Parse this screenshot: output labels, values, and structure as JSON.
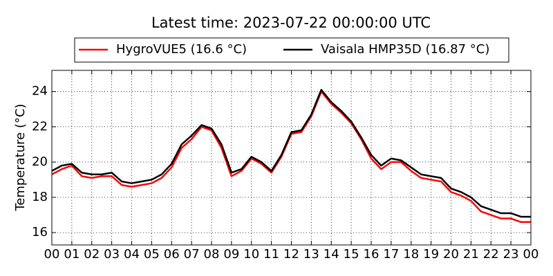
{
  "chart_data": {
    "type": "line",
    "title": "Latest time: 2023-07-22 00:00:00 UTC",
    "y_label": "Temperature (°C)",
    "x": [
      0,
      0.5,
      1,
      1.5,
      2,
      2.5,
      3,
      3.5,
      4,
      4.5,
      5,
      5.5,
      6,
      6.5,
      7,
      7.5,
      8,
      8.5,
      9,
      9.5,
      10,
      10.5,
      11,
      11.5,
      12,
      12.5,
      13,
      13.5,
      14,
      14.5,
      15,
      15.5,
      16,
      16.5,
      17,
      17.5,
      18,
      18.5,
      19,
      19.5,
      20,
      20.5,
      21,
      21.5,
      22,
      22.5,
      23,
      23.5,
      24
    ],
    "series": [
      {
        "name": "HygroVUE5 (16.6 °C)",
        "color": "#ff0000",
        "values": [
          19.3,
          19.6,
          19.8,
          19.2,
          19.1,
          19.2,
          19.2,
          18.7,
          18.6,
          18.7,
          18.8,
          19.1,
          19.7,
          20.8,
          21.3,
          22.0,
          21.8,
          20.8,
          19.2,
          19.5,
          20.2,
          19.9,
          19.4,
          20.3,
          21.6,
          21.7,
          22.6,
          24.0,
          23.3,
          22.8,
          22.2,
          21.3,
          20.2,
          19.6,
          20.0,
          20.0,
          19.5,
          19.1,
          19.0,
          18.9,
          18.3,
          18.1,
          17.8,
          17.2,
          17.0,
          16.8,
          16.8,
          16.6,
          16.6
        ]
      },
      {
        "name": "Vaisala HMP35D (16.87 °C)",
        "color": "#000000",
        "values": [
          19.5,
          19.8,
          19.9,
          19.4,
          19.3,
          19.3,
          19.4,
          18.9,
          18.8,
          18.9,
          19.0,
          19.3,
          19.9,
          21.0,
          21.5,
          22.1,
          21.9,
          21.0,
          19.4,
          19.6,
          20.3,
          20.0,
          19.5,
          20.4,
          21.7,
          21.8,
          22.7,
          24.1,
          23.4,
          22.9,
          22.3,
          21.4,
          20.4,
          19.8,
          20.2,
          20.1,
          19.7,
          19.3,
          19.2,
          19.1,
          18.5,
          18.3,
          18.0,
          17.5,
          17.3,
          17.1,
          17.1,
          16.9,
          16.9
        ]
      }
    ],
    "xlim": [
      0,
      24
    ],
    "xticks": [
      {
        "value": 0,
        "label": "00"
      },
      {
        "value": 1,
        "label": "01"
      },
      {
        "value": 2,
        "label": "02"
      },
      {
        "value": 3,
        "label": "03"
      },
      {
        "value": 4,
        "label": "04"
      },
      {
        "value": 5,
        "label": "05"
      },
      {
        "value": 6,
        "label": "06"
      },
      {
        "value": 7,
        "label": "07"
      },
      {
        "value": 8,
        "label": "08"
      },
      {
        "value": 9,
        "label": "09"
      },
      {
        "value": 10,
        "label": "10"
      },
      {
        "value": 11,
        "label": "11"
      },
      {
        "value": 12,
        "label": "12"
      },
      {
        "value": 13,
        "label": "13"
      },
      {
        "value": 14,
        "label": "14"
      },
      {
        "value": 15,
        "label": "15"
      },
      {
        "value": 16,
        "label": "16"
      },
      {
        "value": 17,
        "label": "17"
      },
      {
        "value": 18,
        "label": "18"
      },
      {
        "value": 19,
        "label": "19"
      },
      {
        "value": 20,
        "label": "20"
      },
      {
        "value": 21,
        "label": "21"
      },
      {
        "value": 22,
        "label": "22"
      },
      {
        "value": 23,
        "label": "23"
      },
      {
        "value": 24,
        "label": "00"
      }
    ],
    "ylim": [
      15.3,
      25.2
    ],
    "yticks": [
      16,
      18,
      20,
      22,
      24
    ],
    "grid": true,
    "legend": "top"
  }
}
